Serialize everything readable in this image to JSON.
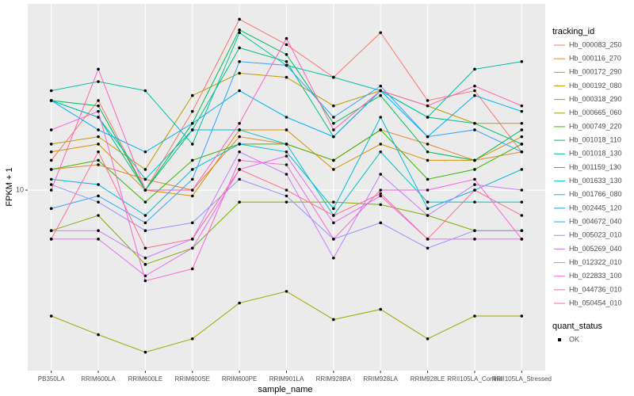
{
  "chart_data": {
    "type": "line",
    "log_y": true,
    "grid": true,
    "x_label": "sample_name",
    "y_label": "FPKM + 1",
    "categories": [
      "PB350LA",
      "RRIM600LA",
      "RRIM600LE",
      "RRIM600SE",
      "RRIM600PE",
      "RRIM901LA",
      "RRIM928BA",
      "RRIM928LA",
      "RRIM928LE",
      "RRII105LA_Control",
      "RRII105LA_Stressed"
    ],
    "ylim": [
      2.04,
      51.5
    ],
    "yticks": [
      10
    ],
    "legend_title": "tracking_id",
    "series": [
      {
        "name": "Hb_000083_250",
        "color": "#F8766D",
        "values": [
          13,
          22,
          10,
          20,
          45,
          36,
          27,
          40,
          22,
          24,
          14
        ]
      },
      {
        "name": "Hb_000116_270",
        "color": "#EA8331",
        "values": [
          12,
          12.5,
          11,
          10,
          16,
          15,
          13,
          17,
          15,
          13,
          14
        ]
      },
      {
        "name": "Hb_000172_290",
        "color": "#D89000",
        "values": [
          14,
          15,
          10,
          9.5,
          17,
          17,
          12,
          15,
          13,
          13,
          16
        ]
      },
      {
        "name": "Hb_000192_080",
        "color": "#C09B00",
        "values": [
          15,
          16,
          12,
          23,
          28,
          27,
          21,
          24,
          21,
          18,
          18
        ]
      },
      {
        "name": "Hb_000318_290",
        "color": "#A3A500",
        "values": [
          3.3,
          2.8,
          2.4,
          2.7,
          3.7,
          4.1,
          3.2,
          3.5,
          2.7,
          3.3,
          3.3
        ]
      },
      {
        "name": "Hb_000665_060",
        "color": "#7CAE00",
        "values": [
          7,
          8,
          5.2,
          6,
          9,
          9,
          9,
          8.8,
          8,
          7,
          7
        ]
      },
      {
        "name": "Hb_000749_220",
        "color": "#39B600",
        "values": [
          12,
          13,
          9,
          13,
          15,
          15,
          13,
          17,
          11,
          12,
          15
        ]
      },
      {
        "name": "Hb_001018_110",
        "color": "#00BB4E",
        "values": [
          22,
          21,
          10,
          18,
          41,
          33,
          18,
          23,
          14,
          13,
          17
        ]
      },
      {
        "name": "Hb_001018_130",
        "color": "#00BF7D",
        "values": [
          22,
          19,
          10,
          17,
          35,
          31,
          16,
          24,
          19,
          18,
          15
        ]
      },
      {
        "name": "Hb_001159_130",
        "color": "#00C1A3",
        "values": [
          24,
          26,
          24,
          15,
          40,
          30,
          27,
          24,
          19,
          29,
          31
        ]
      },
      {
        "name": "Hb_001633_130",
        "color": "#00BFC4",
        "values": [
          22,
          19,
          11,
          17,
          17,
          15,
          8,
          14,
          9,
          9,
          9
        ]
      },
      {
        "name": "Hb_001766_080",
        "color": "#00BAE0",
        "values": [
          11,
          10.5,
          8,
          12,
          15,
          14,
          8.5,
          19,
          8.5,
          10,
          12
        ]
      },
      {
        "name": "Hb_002445_120",
        "color": "#00B0F6",
        "values": [
          22,
          17,
          14,
          18,
          24,
          19,
          16,
          24,
          16,
          23,
          20
        ]
      },
      {
        "name": "Hb_004672_040",
        "color": "#35A2FF",
        "values": [
          8.5,
          9.5,
          7.5,
          11,
          31,
          30,
          19,
          25,
          16,
          17,
          14
        ]
      },
      {
        "name": "Hb_005023_010",
        "color": "#9590FF",
        "values": [
          10.5,
          9,
          7,
          7.5,
          11,
          9.5,
          6.5,
          7.5,
          6,
          7,
          7
        ]
      },
      {
        "name": "Hb_005269_040",
        "color": "#C77CFF",
        "values": [
          7,
          7,
          5.5,
          6.5,
          14,
          11.5,
          5.5,
          11.5,
          8,
          10.5,
          10
        ]
      },
      {
        "name": "Hb_012322_010",
        "color": "#E76BF3",
        "values": [
          6.5,
          6.5,
          4.7,
          6,
          12,
          13.5,
          7.5,
          9.5,
          6.5,
          6.5,
          6.5
        ]
      },
      {
        "name": "Hb_022833_100",
        "color": "#FA62DB",
        "values": [
          17,
          20,
          4.5,
          5,
          13,
          12.5,
          6.5,
          10,
          10,
          11,
          6.5
        ]
      },
      {
        "name": "Hb_044736_010",
        "color": "#FF62BC",
        "values": [
          10,
          29,
          10,
          10,
          18,
          38,
          17,
          24,
          21,
          25,
          21
        ]
      },
      {
        "name": "Hb_050454_010",
        "color": "#FF6C91",
        "values": [
          6.5,
          14,
          6,
          6.5,
          12,
          10,
          8,
          9.7,
          6.5,
          10,
          8
        ]
      }
    ],
    "shape_legend": {
      "title": "quant_status",
      "labels": [
        "OK"
      ]
    }
  }
}
